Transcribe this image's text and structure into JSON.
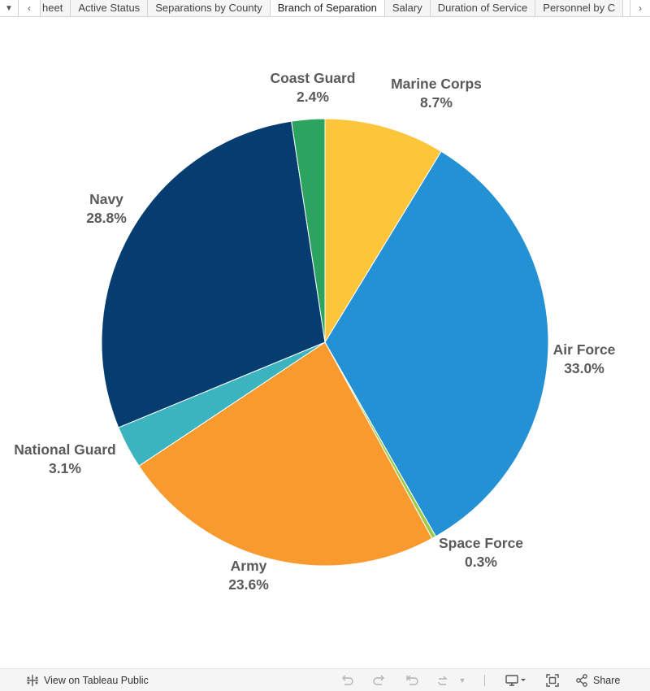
{
  "tabs": {
    "items": [
      {
        "label": "heet"
      },
      {
        "label": "Active Status"
      },
      {
        "label": "Separations by County"
      },
      {
        "label": "Branch of Separation",
        "active": true
      },
      {
        "label": "Salary"
      },
      {
        "label": "Duration of Service"
      },
      {
        "label": "Personnel by C"
      }
    ],
    "menu_icon": "caret-down-icon",
    "prev_icon": "chevron-left-icon",
    "next_icon": "chevron-right-icon"
  },
  "chart_data": {
    "type": "pie",
    "title": "",
    "slices": [
      {
        "label": "Marine Corps",
        "value": 8.7,
        "display": "8.7%",
        "color": "#FCC53A"
      },
      {
        "label": "Air Force",
        "value": 33.0,
        "display": "33.0%",
        "color": "#2391D4"
      },
      {
        "label": "Space Force",
        "value": 0.3,
        "display": "0.3%",
        "color": "#9ACB4A"
      },
      {
        "label": "Army",
        "value": 23.6,
        "display": "23.6%",
        "color": "#F89A2E"
      },
      {
        "label": "National Guard",
        "value": 3.1,
        "display": "3.1%",
        "color": "#3CB4BF"
      },
      {
        "label": "Navy",
        "value": 28.8,
        "display": "28.8%",
        "color": "#063D70"
      },
      {
        "label": "Coast Guard",
        "value": 2.4,
        "display": "2.4%",
        "color": "#2CA35E"
      }
    ],
    "start": "12 o'clock",
    "direction": "clockwise",
    "legend": "none (labels on slices)"
  },
  "toolbar": {
    "view_label": "View on Tableau Public",
    "share_label": "Share",
    "icons": [
      "tableau-logo-icon",
      "undo-icon",
      "redo-icon",
      "revert-icon",
      "refresh-icon",
      "pause-dropdown-icon",
      "download-icon",
      "fullscreen-icon",
      "share-icon"
    ]
  }
}
